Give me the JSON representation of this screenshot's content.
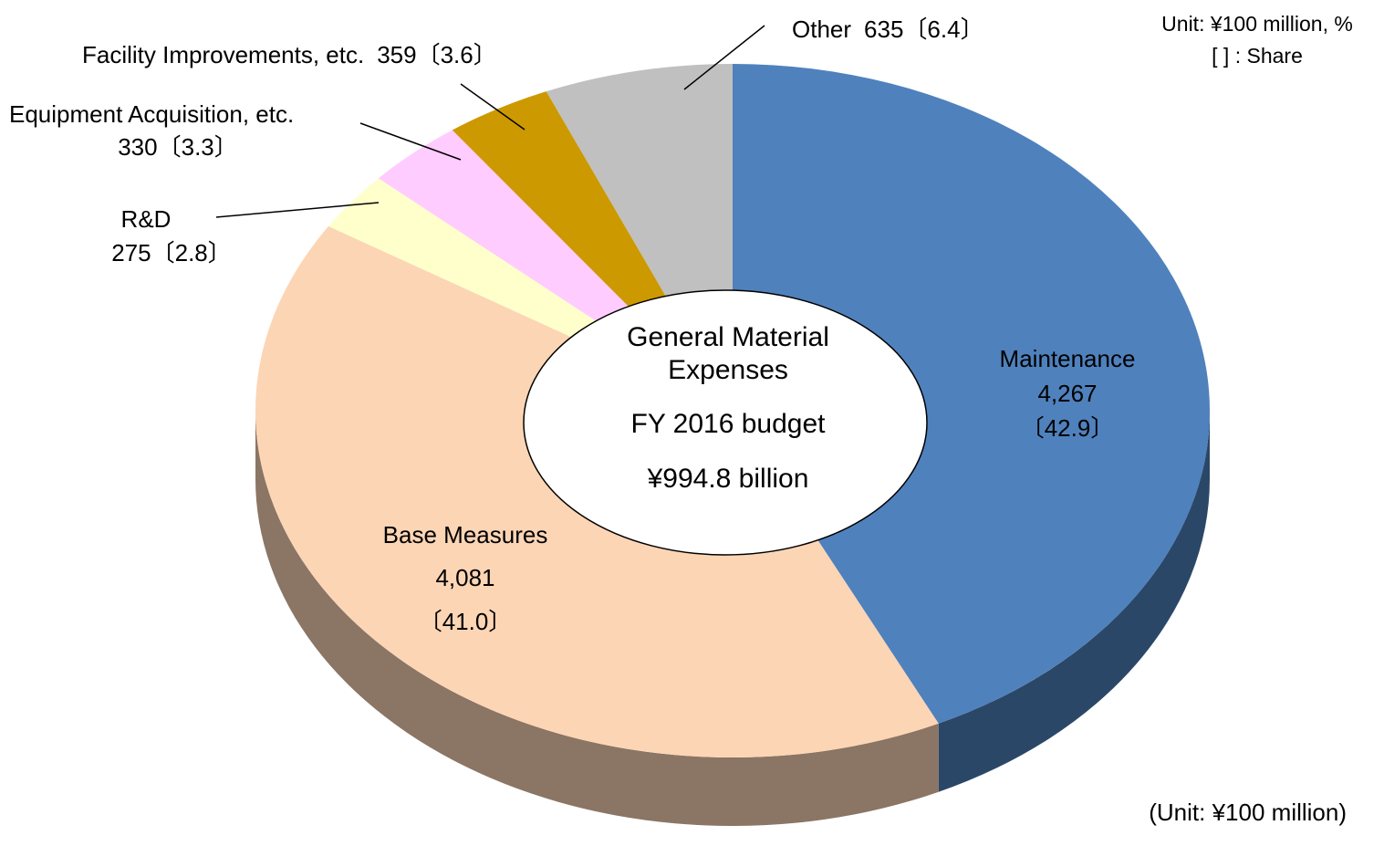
{
  "chart_data": {
    "type": "pie",
    "center_label": [
      "General Material",
      "Expenses",
      "FY 2016 budget",
      "¥994.8 billion"
    ],
    "unit_note": [
      "Unit: ¥100 million, %",
      "[ ] : Share"
    ],
    "footnote": "(Unit: ¥100 million)",
    "categories": [
      "Maintenance",
      "Base Measures",
      "R&D",
      "Equipment Acquisition, etc.",
      "Facility Improvements, etc.",
      "Other"
    ],
    "values": [
      4267,
      4081,
      275,
      330,
      359,
      635
    ],
    "value_labels": [
      "4,267",
      "4,081",
      "275",
      "330",
      "359",
      "635"
    ],
    "shares": [
      42.9,
      41.0,
      2.8,
      3.3,
      3.6,
      6.4
    ],
    "share_labels": [
      "〔42.9〕",
      "〔41.0〕",
      "〔2.8〕",
      "〔3.3〕",
      "〔3.6〕",
      "〔6.4〕"
    ],
    "colors": [
      "#4f81bd",
      "#fcd5b5",
      "#ffffcc",
      "#ffccff",
      "#cc9900",
      "#c0c0c0"
    ]
  }
}
